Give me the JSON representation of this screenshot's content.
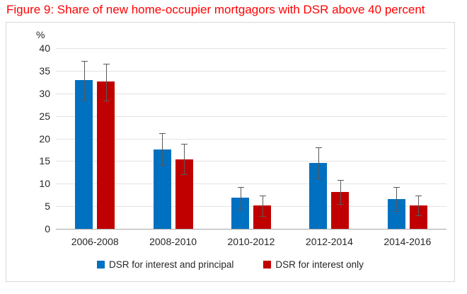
{
  "figure": {
    "title": "Figure 9: Share of new home-occupier mortgagors with DSR above 40 percent",
    "title_color": "#ff0000"
  },
  "chart_data": {
    "type": "bar",
    "title": "Figure 9: Share of new home-occupier mortgagors with DSR above 40 percent",
    "unit_label": "%",
    "categories": [
      "2006-2008",
      "2008-2010",
      "2010-2012",
      "2012-2014",
      "2014-2016"
    ],
    "series": [
      {
        "name": "DSR for interest and principal",
        "color": "#0070C0",
        "values": [
          33.0,
          17.5,
          6.9,
          14.6,
          6.6
        ],
        "error_low": [
          28.6,
          14.1,
          4.3,
          11.2,
          4.0
        ],
        "error_high": [
          37.2,
          21.2,
          9.3,
          18.0,
          9.2
        ]
      },
      {
        "name": "DSR for interest only",
        "color": "#C00000",
        "values": [
          32.7,
          15.4,
          5.1,
          8.2,
          5.1
        ],
        "error_low": [
          28.4,
          12.1,
          2.9,
          5.5,
          3.0
        ],
        "error_high": [
          36.6,
          18.9,
          7.3,
          10.9,
          7.4
        ]
      }
    ],
    "ylim": [
      0,
      40
    ],
    "yticks": [
      0,
      5,
      10,
      15,
      20,
      25,
      30,
      35,
      40
    ],
    "grid": true,
    "legend_position": "bottom",
    "error_bar_color": "#595959",
    "gridline_color": "#e3e3e3",
    "axis_line_color": "#a6a6a6"
  }
}
